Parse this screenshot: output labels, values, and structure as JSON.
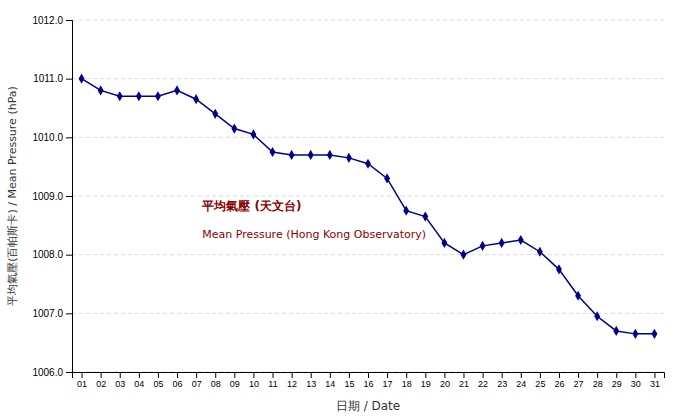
{
  "chart_data": {
    "type": "line",
    "xlabel": "日期 / Date",
    "ylabel": "平均氣壓(百帕斯卡) / Mean Pressure (hPa)",
    "annotations": [
      "平均氣壓 (天文台)",
      "Mean Pressure (Hong Kong Observatory)"
    ],
    "x": [
      1,
      2,
      3,
      4,
      5,
      6,
      7,
      8,
      9,
      10,
      11,
      12,
      13,
      14,
      15,
      16,
      17,
      18,
      19,
      20,
      21,
      22,
      23,
      24,
      25,
      26,
      27,
      28,
      29,
      30,
      31
    ],
    "values": [
      1011.0,
      1010.8,
      1010.7,
      1010.7,
      1010.7,
      1010.8,
      1010.65,
      1010.4,
      1010.15,
      1010.05,
      1009.75,
      1009.7,
      1009.7,
      1009.7,
      1009.65,
      1009.55,
      1009.3,
      1008.75,
      1008.65,
      1008.2,
      1008.0,
      1008.15,
      1008.2,
      1008.25,
      1008.05,
      1007.75,
      1007.3,
      1006.95,
      1006.7,
      1006.65,
      1006.65
    ],
    "color": "#00008B",
    "marker": "diamond",
    "xlim": [
      0.5,
      31.5
    ],
    "xticks": [
      {
        "value": 1,
        "label": "01"
      },
      {
        "value": 2,
        "label": "02"
      },
      {
        "value": 3,
        "label": "03"
      },
      {
        "value": 4,
        "label": "04"
      },
      {
        "value": 5,
        "label": "05"
      },
      {
        "value": 6,
        "label": "06"
      },
      {
        "value": 7,
        "label": "07"
      },
      {
        "value": 8,
        "label": "08"
      },
      {
        "value": 9,
        "label": "09"
      },
      {
        "value": 10,
        "label": "10"
      },
      {
        "value": 11,
        "label": "11"
      },
      {
        "value": 12,
        "label": "12"
      },
      {
        "value": 13,
        "label": "13"
      },
      {
        "value": 14,
        "label": "14"
      },
      {
        "value": 15,
        "label": "15"
      },
      {
        "value": 16,
        "label": "16"
      },
      {
        "value": 17,
        "label": "17"
      },
      {
        "value": 18,
        "label": "18"
      },
      {
        "value": 19,
        "label": "19"
      },
      {
        "value": 20,
        "label": "20"
      },
      {
        "value": 21,
        "label": "21"
      },
      {
        "value": 22,
        "label": "22"
      },
      {
        "value": 23,
        "label": "23"
      },
      {
        "value": 24,
        "label": "24"
      },
      {
        "value": 25,
        "label": "25"
      },
      {
        "value": 26,
        "label": "26"
      },
      {
        "value": 27,
        "label": "27"
      },
      {
        "value": 28,
        "label": "28"
      },
      {
        "value": 29,
        "label": "29"
      },
      {
        "value": 30,
        "label": "30"
      },
      {
        "value": 31,
        "label": "31"
      }
    ],
    "ylim": [
      1006.0,
      1012.0
    ],
    "yticks": [
      {
        "value": 1006.0,
        "label": "1006.0"
      },
      {
        "value": 1007.0,
        "label": "1007.0"
      },
      {
        "value": 1008.0,
        "label": "1008.0"
      },
      {
        "value": 1009.0,
        "label": "1009.0"
      },
      {
        "value": 1010.0,
        "label": "1010.0"
      },
      {
        "value": 1011.0,
        "label": "1011.0"
      },
      {
        "value": 1012.0,
        "label": "1012.0"
      }
    ],
    "grid": true
  }
}
